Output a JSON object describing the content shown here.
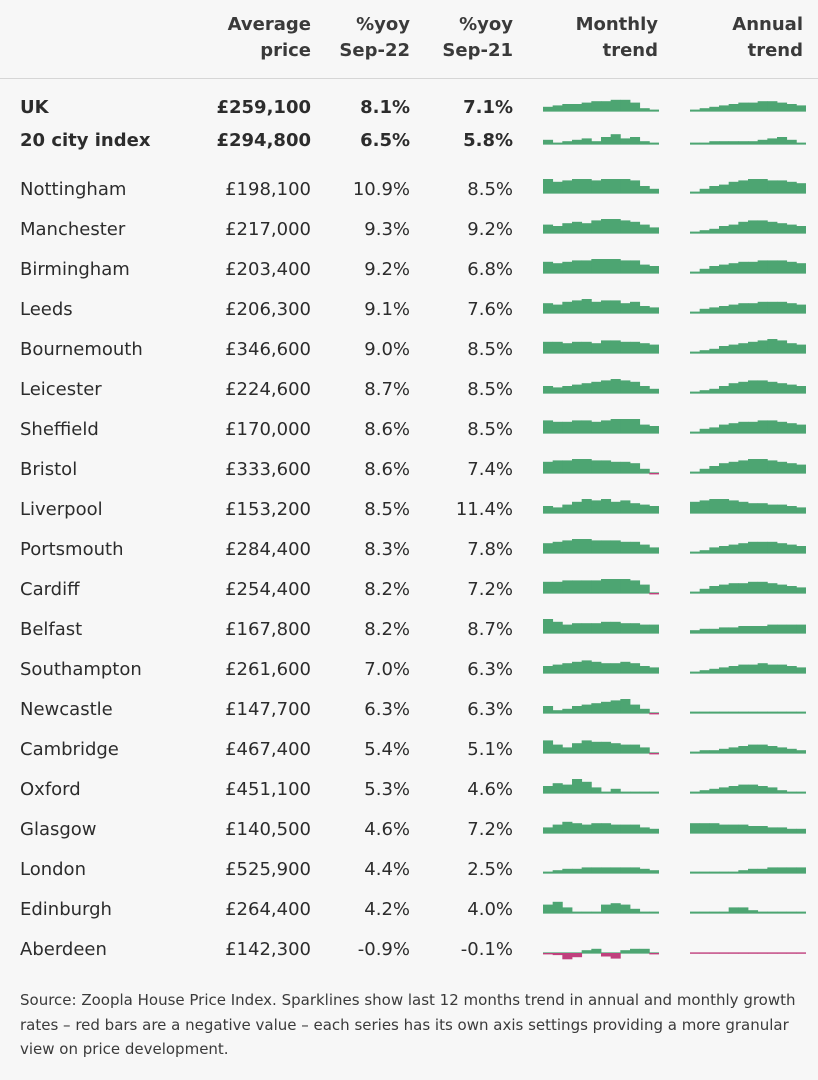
{
  "headers": {
    "price": [
      "Average",
      "price"
    ],
    "yoy22": [
      "%yoy",
      "Sep-22"
    ],
    "yoy21": [
      "%yoy",
      "Sep-21"
    ],
    "monthly": [
      "Monthly",
      "trend"
    ],
    "annual": [
      "Annual",
      "trend"
    ]
  },
  "source_note": "Source: Zoopla House Price Index. Sparklines show last 12 months trend in annual and monthly growth rates – red bars are a negative value – each series has its own axis settings providing a more granular view on price development.",
  "colors": {
    "positive": "#4da572",
    "negative": "#c0407d",
    "baseline": "#4da572"
  },
  "chart_data": {
    "type": "table",
    "columns": [
      "city",
      "Average price",
      "%yoy Sep-22",
      "%yoy Sep-21",
      "Monthly trend",
      "Annual trend"
    ],
    "rows": [
      {
        "city": "UK",
        "price": "£259,100",
        "yoy22": "8.1%",
        "yoy21": "7.1%",
        "bold": true,
        "monthly": [
          0.3,
          0.4,
          0.5,
          0.5,
          0.6,
          0.7,
          0.7,
          0.8,
          0.8,
          0.6,
          0.2,
          0.1
        ],
        "annual": [
          0.1,
          0.2,
          0.3,
          0.4,
          0.5,
          0.6,
          0.6,
          0.7,
          0.7,
          0.6,
          0.5,
          0.4
        ]
      },
      {
        "city": "20 city index",
        "price": "£294,800",
        "yoy22": "6.5%",
        "yoy21": "5.8%",
        "bold": true,
        "monthly": [
          0.3,
          0.1,
          0.2,
          0.3,
          0.4,
          0.2,
          0.5,
          0.7,
          0.4,
          0.5,
          0.2,
          0.1
        ],
        "annual": [
          0.1,
          0.1,
          0.2,
          0.2,
          0.2,
          0.2,
          0.2,
          0.3,
          0.4,
          0.5,
          0.3,
          0.1
        ]
      },
      {
        "city": "Nottingham",
        "price": "£198,100",
        "yoy22": "10.9%",
        "yoy21": "8.5%",
        "monthly": [
          1,
          0.8,
          0.9,
          1,
          1,
          0.9,
          1,
          1,
          1,
          0.9,
          0.5,
          0.3
        ],
        "annual": [
          0.1,
          0.3,
          0.5,
          0.6,
          0.8,
          0.9,
          1,
          1,
          0.9,
          0.9,
          0.8,
          0.7
        ]
      },
      {
        "city": "Manchester",
        "price": "£217,000",
        "yoy22": "9.3%",
        "yoy21": "9.2%",
        "monthly": [
          0.6,
          0.5,
          0.7,
          0.8,
          0.7,
          0.9,
          1,
          1,
          0.9,
          0.8,
          0.6,
          0.4
        ],
        "annual": [
          0.1,
          0.2,
          0.3,
          0.5,
          0.6,
          0.8,
          0.9,
          0.9,
          0.8,
          0.7,
          0.6,
          0.5
        ]
      },
      {
        "city": "Birmingham",
        "price": "£203,400",
        "yoy22": "9.2%",
        "yoy21": "6.8%",
        "monthly": [
          0.8,
          0.7,
          0.8,
          0.9,
          0.9,
          1,
          1,
          1,
          0.9,
          0.9,
          0.6,
          0.5
        ],
        "annual": [
          0.1,
          0.3,
          0.5,
          0.6,
          0.7,
          0.8,
          0.8,
          0.9,
          0.9,
          0.9,
          0.8,
          0.7
        ]
      },
      {
        "city": "Leeds",
        "price": "£206,300",
        "yoy22": "9.1%",
        "yoy21": "7.6%",
        "monthly": [
          0.7,
          0.6,
          0.8,
          0.9,
          1,
          0.8,
          0.9,
          0.9,
          0.7,
          0.8,
          0.5,
          0.4
        ],
        "annual": [
          0.1,
          0.3,
          0.4,
          0.5,
          0.6,
          0.7,
          0.7,
          0.8,
          0.8,
          0.8,
          0.7,
          0.6
        ]
      },
      {
        "city": "Bournemouth",
        "price": "£346,600",
        "yoy22": "9.0%",
        "yoy21": "8.5%",
        "monthly": [
          0.8,
          0.8,
          0.7,
          0.8,
          0.8,
          0.7,
          0.9,
          0.9,
          0.8,
          0.8,
          0.7,
          0.6
        ],
        "annual": [
          0.1,
          0.2,
          0.3,
          0.5,
          0.6,
          0.7,
          0.8,
          0.9,
          1,
          0.9,
          0.7,
          0.6
        ]
      },
      {
        "city": "Leicester",
        "price": "£224,600",
        "yoy22": "8.7%",
        "yoy21": "8.5%",
        "monthly": [
          0.5,
          0.4,
          0.5,
          0.6,
          0.7,
          0.8,
          0.9,
          1,
          0.9,
          0.8,
          0.5,
          0.3
        ],
        "annual": [
          0.1,
          0.2,
          0.3,
          0.5,
          0.7,
          0.8,
          0.9,
          0.9,
          0.8,
          0.7,
          0.6,
          0.5
        ]
      },
      {
        "city": "Sheffield",
        "price": "£170,000",
        "yoy22": "8.6%",
        "yoy21": "8.5%",
        "monthly": [
          0.9,
          0.8,
          0.8,
          0.9,
          0.9,
          0.8,
          0.9,
          1,
          1,
          1,
          0.6,
          0.5
        ],
        "annual": [
          0.1,
          0.3,
          0.4,
          0.6,
          0.7,
          0.8,
          0.8,
          0.9,
          0.9,
          0.8,
          0.7,
          0.6
        ]
      },
      {
        "city": "Bristol",
        "price": "£333,600",
        "yoy22": "8.6%",
        "yoy21": "7.4%",
        "monthly": [
          0.8,
          0.9,
          0.9,
          1,
          1,
          0.9,
          0.9,
          0.8,
          0.8,
          0.7,
          0.3,
          -0.2
        ],
        "annual": [
          0.1,
          0.3,
          0.5,
          0.7,
          0.8,
          0.9,
          1,
          1,
          0.9,
          0.8,
          0.7,
          0.6
        ]
      },
      {
        "city": "Liverpool",
        "price": "£153,200",
        "yoy22": "8.5%",
        "yoy21": "11.4%",
        "monthly": [
          0.5,
          0.4,
          0.6,
          0.8,
          1,
          0.9,
          1,
          0.8,
          0.9,
          0.7,
          0.6,
          0.5
        ],
        "annual": [
          0.8,
          0.9,
          1,
          1,
          0.9,
          0.8,
          0.7,
          0.7,
          0.6,
          0.6,
          0.5,
          0.4
        ]
      },
      {
        "city": "Portsmouth",
        "price": "£284,400",
        "yoy22": "8.3%",
        "yoy21": "7.8%",
        "monthly": [
          0.7,
          0.8,
          0.9,
          1,
          1,
          0.9,
          0.9,
          0.9,
          0.8,
          0.8,
          0.6,
          0.4
        ],
        "annual": [
          0.1,
          0.2,
          0.4,
          0.5,
          0.6,
          0.7,
          0.8,
          0.8,
          0.8,
          0.7,
          0.6,
          0.5
        ]
      },
      {
        "city": "Cardiff",
        "price": "£254,400",
        "yoy22": "8.2%",
        "yoy21": "7.2%",
        "monthly": [
          0.8,
          0.8,
          0.9,
          0.9,
          0.9,
          0.9,
          1,
          1,
          1,
          0.9,
          0.6,
          -0.2
        ],
        "annual": [
          0.1,
          0.3,
          0.5,
          0.6,
          0.7,
          0.7,
          0.8,
          0.8,
          0.7,
          0.6,
          0.5,
          0.4
        ]
      },
      {
        "city": "Belfast",
        "price": "£167,800",
        "yoy22": "8.2%",
        "yoy21": "8.7%",
        "monthly": [
          1,
          0.8,
          0.6,
          0.7,
          0.7,
          0.7,
          0.8,
          0.8,
          0.7,
          0.7,
          0.6,
          0.6
        ],
        "annual": [
          0.2,
          0.3,
          0.3,
          0.4,
          0.4,
          0.5,
          0.5,
          0.5,
          0.6,
          0.6,
          0.6,
          0.6
        ]
      },
      {
        "city": "Southampton",
        "price": "£261,600",
        "yoy22": "7.0%",
        "yoy21": "6.3%",
        "monthly": [
          0.5,
          0.6,
          0.7,
          0.8,
          0.9,
          0.8,
          0.7,
          0.7,
          0.8,
          0.7,
          0.5,
          0.4
        ],
        "annual": [
          0.1,
          0.2,
          0.3,
          0.4,
          0.5,
          0.6,
          0.6,
          0.7,
          0.6,
          0.6,
          0.5,
          0.4
        ]
      },
      {
        "city": "Newcastle",
        "price": "£147,700",
        "yoy22": "6.3%",
        "yoy21": "6.3%",
        "monthly": [
          0.5,
          0.2,
          0.3,
          0.5,
          0.6,
          0.7,
          0.8,
          0.9,
          1,
          0.6,
          0.3,
          -0.2
        ],
        "annual": [
          0.1,
          0.1,
          0.1,
          0.1,
          0.1,
          0.1,
          0.1,
          0.1,
          0.1,
          0.1,
          0.1,
          0.1
        ]
      },
      {
        "city": "Cambridge",
        "price": "£467,400",
        "yoy22": "5.4%",
        "yoy21": "5.1%",
        "monthly": [
          0.9,
          0.6,
          0.4,
          0.7,
          0.9,
          0.8,
          0.8,
          0.7,
          0.6,
          0.6,
          0.4,
          -0.2
        ],
        "annual": [
          0.1,
          0.2,
          0.2,
          0.3,
          0.4,
          0.5,
          0.6,
          0.6,
          0.5,
          0.4,
          0.3,
          0.2
        ]
      },
      {
        "city": "Oxford",
        "price": "£451,100",
        "yoy22": "5.3%",
        "yoy21": "4.6%",
        "monthly": [
          0.5,
          0.7,
          0.6,
          1,
          0.8,
          0.4,
          0.1,
          0.3,
          0.1,
          0.1,
          0.1,
          0.1
        ],
        "annual": [
          0.1,
          0.2,
          0.3,
          0.4,
          0.5,
          0.6,
          0.6,
          0.5,
          0.4,
          0.2,
          0.1,
          0.1
        ]
      },
      {
        "city": "Glasgow",
        "price": "£140,500",
        "yoy22": "4.6%",
        "yoy21": "7.2%",
        "monthly": [
          0.4,
          0.6,
          0.8,
          0.7,
          0.6,
          0.7,
          0.7,
          0.6,
          0.6,
          0.6,
          0.4,
          0.3
        ],
        "annual": [
          0.7,
          0.7,
          0.7,
          0.6,
          0.6,
          0.6,
          0.5,
          0.5,
          0.4,
          0.4,
          0.3,
          0.3
        ]
      },
      {
        "city": "London",
        "price": "£525,900",
        "yoy22": "4.4%",
        "yoy21": "2.5%",
        "monthly": [
          0.1,
          0.2,
          0.3,
          0.3,
          0.4,
          0.4,
          0.4,
          0.4,
          0.4,
          0.4,
          0.3,
          0.2
        ],
        "annual": [
          0.1,
          0.1,
          0.1,
          0.1,
          0.1,
          0.2,
          0.3,
          0.3,
          0.4,
          0.4,
          0.4,
          0.4
        ]
      },
      {
        "city": "Edinburgh",
        "price": "£264,400",
        "yoy22": "4.2%",
        "yoy21": "4.0%",
        "monthly": [
          0.6,
          0.8,
          0.4,
          0.1,
          0.1,
          0.1,
          0.6,
          0.7,
          0.6,
          0.3,
          0.1,
          0.1
        ],
        "annual": [
          0.1,
          0.1,
          0.1,
          0.1,
          0.4,
          0.4,
          0.2,
          0.1,
          0.1,
          0.1,
          0.1,
          0.1
        ]
      },
      {
        "city": "Aberdeen",
        "price": "£142,300",
        "yoy22": "-0.9%",
        "yoy21": "-0.1%",
        "monthly": [
          -0.2,
          -0.3,
          -0.9,
          -0.6,
          0.2,
          0.3,
          -0.5,
          -0.8,
          0.2,
          0.3,
          0.3,
          -0.2
        ],
        "annual": [
          -0.1,
          -0.1,
          -0.1,
          -0.1,
          -0.1,
          -0.1,
          -0.1,
          -0.1,
          -0.1,
          -0.1,
          -0.1,
          -0.1
        ]
      }
    ]
  }
}
